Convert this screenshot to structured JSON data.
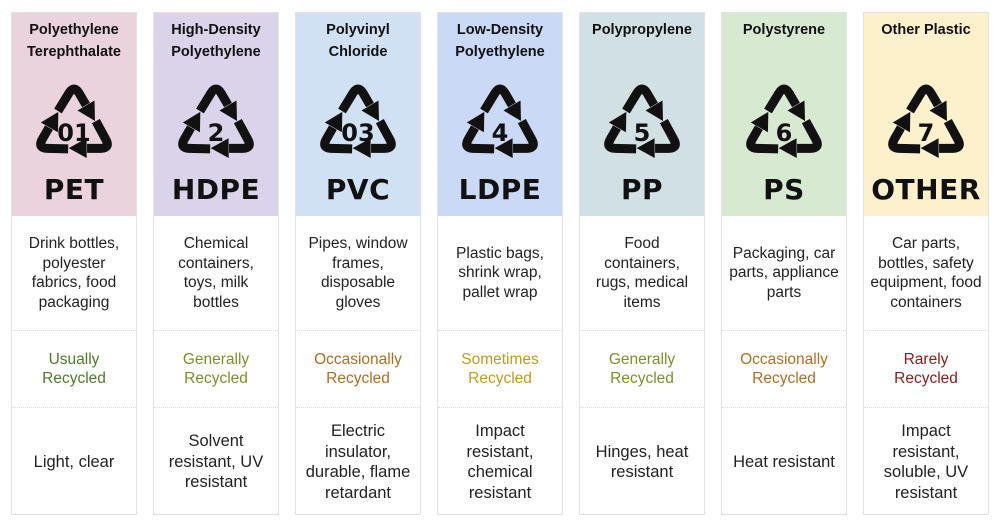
{
  "plastics": [
    {
      "name": "Polyethylene Terephthalate",
      "number": "01",
      "abbr": "PET",
      "bg": "#ead3dc",
      "uses": "Drink bottles, polyester fabrics, food packaging",
      "recycled": "Usually Recycled",
      "recycled_color": "#4e7a2a",
      "properties": "Light, clear"
    },
    {
      "name": "High-Density Polyethylene",
      "number": "2",
      "abbr": "HDPE",
      "bg": "#dbd3e9",
      "uses": "Chemical containers, toys, milk bottles",
      "recycled": "Generally Recycled",
      "recycled_color": "#7d8f2c",
      "properties": "Solvent resistant, UV resistant"
    },
    {
      "name": "Polyvinyl Chloride",
      "number": "03",
      "abbr": "PVC",
      "bg": "#cfe1f3",
      "uses": "Pipes, window frames, disposable gloves",
      "recycled": "Occasionally Recycled",
      "recycled_color": "#b06e22",
      "properties": "Electric insulator, durable, flame retardant"
    },
    {
      "name": "Low-Density Polyethylene",
      "number": "4",
      "abbr": "LDPE",
      "bg": "#c9d9f6",
      "uses": "Plastic bags, shrink wrap, pallet wrap",
      "recycled": "Sometimes Recycled",
      "recycled_color": "#bf9a22",
      "properties": "Impact resistant, chemical resistant"
    },
    {
      "name": "Polypropylene",
      "number": "5",
      "abbr": "PP",
      "bg": "#d0e0e3",
      "uses": "Food containers, rugs, medical items",
      "recycled": "Generally Recycled",
      "recycled_color": "#7d8f2c",
      "properties": "Hinges, heat resistant"
    },
    {
      "name": "Polystyrene",
      "number": "6",
      "abbr": "PS",
      "bg": "#d8e9d2",
      "uses": "Packaging, car parts, appliance parts",
      "recycled": "Occasionally Recycled",
      "recycled_color": "#b06e22",
      "properties": "Heat resistant"
    },
    {
      "name": "Other Plastic",
      "number": "7",
      "abbr": "OTHER",
      "bg": "#fdf1cb",
      "uses": "Car parts, bottles, safety equipment, food containers",
      "recycled": "Rarely Recycled",
      "recycled_color": "#8a1c1c",
      "properties": "Impact resistant, soluble, UV resistant"
    }
  ]
}
